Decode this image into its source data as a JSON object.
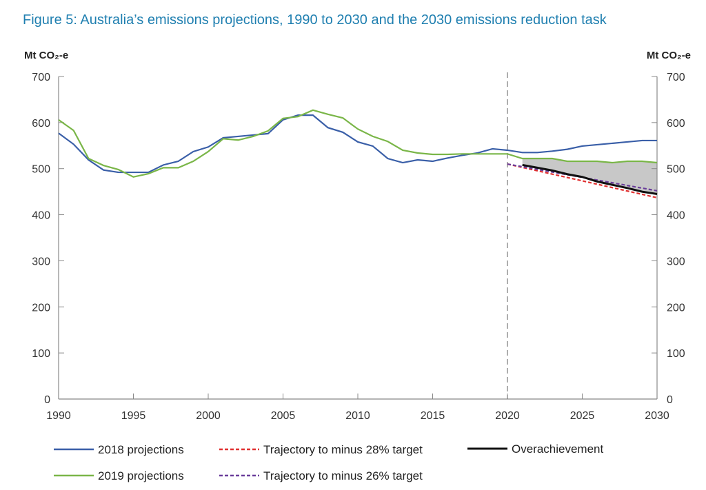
{
  "chart_data": {
    "type": "line",
    "title": "Figure 5: Australia’s emissions projections, 1990 to 2030 and the 2030 emissions reduction task",
    "ylabel_left": "Mt CO₂-e",
    "ylabel_right": "Mt CO₂-e",
    "xlim": [
      1990,
      2030
    ],
    "ylim": [
      0,
      700
    ],
    "xticks": [
      1990,
      1995,
      2000,
      2005,
      2010,
      2015,
      2020,
      2025,
      2030
    ],
    "yticks": [
      0,
      100,
      200,
      300,
      400,
      500,
      600,
      700
    ],
    "grid": false,
    "vertical_marker": 2020,
    "legend_position": "bottom",
    "series": [
      {
        "name": "2018 projections",
        "color": "#3a5fa8",
        "style": "solid",
        "x": [
          1990,
          1991,
          1992,
          1993,
          1994,
          1995,
          1996,
          1997,
          1998,
          1999,
          2000,
          2001,
          2002,
          2003,
          2004,
          2005,
          2006,
          2007,
          2008,
          2009,
          2010,
          2011,
          2012,
          2013,
          2014,
          2015,
          2016,
          2017,
          2018,
          2019,
          2020,
          2021,
          2022,
          2023,
          2024,
          2025,
          2026,
          2027,
          2028,
          2029,
          2030
        ],
        "y": [
          577,
          553,
          519,
          497,
          492,
          492,
          492,
          508,
          516,
          537,
          547,
          567,
          570,
          573,
          576,
          606,
          616,
          616,
          589,
          579,
          558,
          549,
          522,
          513,
          519,
          516,
          523,
          529,
          534,
          543,
          540,
          535,
          535,
          538,
          542,
          549,
          552,
          555,
          558,
          561,
          561
        ]
      },
      {
        "name": "2019 projections",
        "color": "#7ab648",
        "style": "solid",
        "x": [
          1990,
          1991,
          1992,
          1993,
          1994,
          1995,
          1996,
          1997,
          1998,
          1999,
          2000,
          2001,
          2002,
          2003,
          2004,
          2005,
          2006,
          2007,
          2008,
          2009,
          2010,
          2011,
          2012,
          2013,
          2014,
          2015,
          2016,
          2017,
          2018,
          2019,
          2020,
          2021,
          2022,
          2023,
          2024,
          2025,
          2026,
          2027,
          2028,
          2029,
          2030
        ],
        "y": [
          606,
          583,
          522,
          507,
          498,
          482,
          489,
          502,
          502,
          516,
          537,
          565,
          562,
          570,
          582,
          609,
          613,
          627,
          618,
          610,
          586,
          570,
          559,
          540,
          534,
          531,
          531,
          532,
          532,
          532,
          532,
          522,
          522,
          522,
          516,
          516,
          516,
          513,
          516,
          516,
          513
        ]
      },
      {
        "name": "Trajectory to minus 28% target",
        "color": "#e03030",
        "style": "dashed",
        "x": [
          2020,
          2030
        ],
        "y": [
          510,
          437
        ]
      },
      {
        "name": "Trajectory to minus 26% target",
        "color": "#6a3d9a",
        "style": "dashed",
        "x": [
          2020,
          2030
        ],
        "y": [
          510,
          452
        ]
      },
      {
        "name": "Overachievement",
        "color": "#111111",
        "style": "solid",
        "x": [
          2021,
          2022,
          2023,
          2024,
          2025,
          2026,
          2027,
          2028,
          2029,
          2030
        ],
        "y": [
          508,
          502,
          496,
          488,
          482,
          472,
          465,
          458,
          450,
          445
        ]
      }
    ],
    "shaded_area": {
      "color": "#c8c8c8",
      "between": [
        "2019 projections",
        "Overachievement"
      ],
      "x_range": [
        2021,
        2030
      ]
    }
  }
}
